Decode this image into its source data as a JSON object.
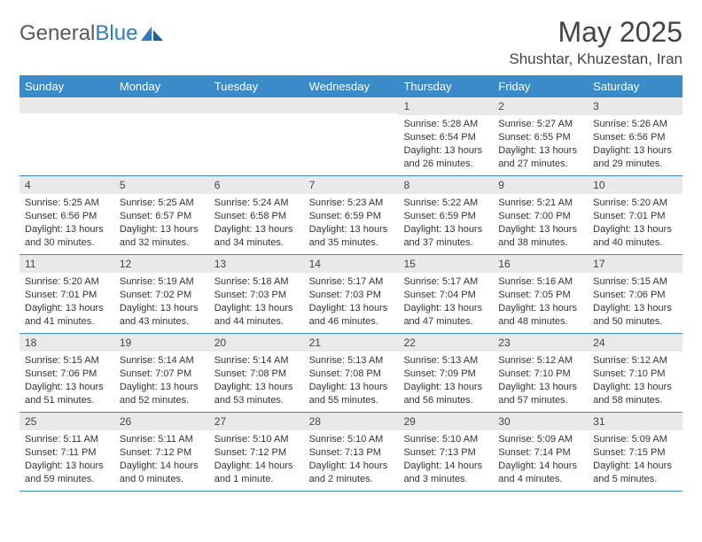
{
  "brand": {
    "part1": "General",
    "part2": "Blue"
  },
  "title": "May 2025",
  "location": "Shushtar, Khuzestan, Iran",
  "colors": {
    "header_bg": "#3b8bc9",
    "header_text": "#ffffff",
    "daynum_bg": "#e9e9e9",
    "rule": "#3b8bc9",
    "text": "#333333",
    "brand_gray": "#5a5a5a",
    "brand_blue": "#2d7bc0",
    "page_bg": "#ffffff"
  },
  "typography": {
    "title_fontsize": 32,
    "location_fontsize": 17,
    "dayheader_fontsize": 13,
    "daynum_fontsize": 12,
    "body_fontsize": 11
  },
  "day_names": [
    "Sunday",
    "Monday",
    "Tuesday",
    "Wednesday",
    "Thursday",
    "Friday",
    "Saturday"
  ],
  "weeks": [
    [
      {
        "n": "",
        "sr": "",
        "ss": "",
        "dl": ""
      },
      {
        "n": "",
        "sr": "",
        "ss": "",
        "dl": ""
      },
      {
        "n": "",
        "sr": "",
        "ss": "",
        "dl": ""
      },
      {
        "n": "",
        "sr": "",
        "ss": "",
        "dl": ""
      },
      {
        "n": "1",
        "sr": "Sunrise: 5:28 AM",
        "ss": "Sunset: 6:54 PM",
        "dl": "Daylight: 13 hours and 26 minutes."
      },
      {
        "n": "2",
        "sr": "Sunrise: 5:27 AM",
        "ss": "Sunset: 6:55 PM",
        "dl": "Daylight: 13 hours and 27 minutes."
      },
      {
        "n": "3",
        "sr": "Sunrise: 5:26 AM",
        "ss": "Sunset: 6:56 PM",
        "dl": "Daylight: 13 hours and 29 minutes."
      }
    ],
    [
      {
        "n": "4",
        "sr": "Sunrise: 5:25 AM",
        "ss": "Sunset: 6:56 PM",
        "dl": "Daylight: 13 hours and 30 minutes."
      },
      {
        "n": "5",
        "sr": "Sunrise: 5:25 AM",
        "ss": "Sunset: 6:57 PM",
        "dl": "Daylight: 13 hours and 32 minutes."
      },
      {
        "n": "6",
        "sr": "Sunrise: 5:24 AM",
        "ss": "Sunset: 6:58 PM",
        "dl": "Daylight: 13 hours and 34 minutes."
      },
      {
        "n": "7",
        "sr": "Sunrise: 5:23 AM",
        "ss": "Sunset: 6:59 PM",
        "dl": "Daylight: 13 hours and 35 minutes."
      },
      {
        "n": "8",
        "sr": "Sunrise: 5:22 AM",
        "ss": "Sunset: 6:59 PM",
        "dl": "Daylight: 13 hours and 37 minutes."
      },
      {
        "n": "9",
        "sr": "Sunrise: 5:21 AM",
        "ss": "Sunset: 7:00 PM",
        "dl": "Daylight: 13 hours and 38 minutes."
      },
      {
        "n": "10",
        "sr": "Sunrise: 5:20 AM",
        "ss": "Sunset: 7:01 PM",
        "dl": "Daylight: 13 hours and 40 minutes."
      }
    ],
    [
      {
        "n": "11",
        "sr": "Sunrise: 5:20 AM",
        "ss": "Sunset: 7:01 PM",
        "dl": "Daylight: 13 hours and 41 minutes."
      },
      {
        "n": "12",
        "sr": "Sunrise: 5:19 AM",
        "ss": "Sunset: 7:02 PM",
        "dl": "Daylight: 13 hours and 43 minutes."
      },
      {
        "n": "13",
        "sr": "Sunrise: 5:18 AM",
        "ss": "Sunset: 7:03 PM",
        "dl": "Daylight: 13 hours and 44 minutes."
      },
      {
        "n": "14",
        "sr": "Sunrise: 5:17 AM",
        "ss": "Sunset: 7:03 PM",
        "dl": "Daylight: 13 hours and 46 minutes."
      },
      {
        "n": "15",
        "sr": "Sunrise: 5:17 AM",
        "ss": "Sunset: 7:04 PM",
        "dl": "Daylight: 13 hours and 47 minutes."
      },
      {
        "n": "16",
        "sr": "Sunrise: 5:16 AM",
        "ss": "Sunset: 7:05 PM",
        "dl": "Daylight: 13 hours and 48 minutes."
      },
      {
        "n": "17",
        "sr": "Sunrise: 5:15 AM",
        "ss": "Sunset: 7:06 PM",
        "dl": "Daylight: 13 hours and 50 minutes."
      }
    ],
    [
      {
        "n": "18",
        "sr": "Sunrise: 5:15 AM",
        "ss": "Sunset: 7:06 PM",
        "dl": "Daylight: 13 hours and 51 minutes."
      },
      {
        "n": "19",
        "sr": "Sunrise: 5:14 AM",
        "ss": "Sunset: 7:07 PM",
        "dl": "Daylight: 13 hours and 52 minutes."
      },
      {
        "n": "20",
        "sr": "Sunrise: 5:14 AM",
        "ss": "Sunset: 7:08 PM",
        "dl": "Daylight: 13 hours and 53 minutes."
      },
      {
        "n": "21",
        "sr": "Sunrise: 5:13 AM",
        "ss": "Sunset: 7:08 PM",
        "dl": "Daylight: 13 hours and 55 minutes."
      },
      {
        "n": "22",
        "sr": "Sunrise: 5:13 AM",
        "ss": "Sunset: 7:09 PM",
        "dl": "Daylight: 13 hours and 56 minutes."
      },
      {
        "n": "23",
        "sr": "Sunrise: 5:12 AM",
        "ss": "Sunset: 7:10 PM",
        "dl": "Daylight: 13 hours and 57 minutes."
      },
      {
        "n": "24",
        "sr": "Sunrise: 5:12 AM",
        "ss": "Sunset: 7:10 PM",
        "dl": "Daylight: 13 hours and 58 minutes."
      }
    ],
    [
      {
        "n": "25",
        "sr": "Sunrise: 5:11 AM",
        "ss": "Sunset: 7:11 PM",
        "dl": "Daylight: 13 hours and 59 minutes."
      },
      {
        "n": "26",
        "sr": "Sunrise: 5:11 AM",
        "ss": "Sunset: 7:12 PM",
        "dl": "Daylight: 14 hours and 0 minutes."
      },
      {
        "n": "27",
        "sr": "Sunrise: 5:10 AM",
        "ss": "Sunset: 7:12 PM",
        "dl": "Daylight: 14 hours and 1 minute."
      },
      {
        "n": "28",
        "sr": "Sunrise: 5:10 AM",
        "ss": "Sunset: 7:13 PM",
        "dl": "Daylight: 14 hours and 2 minutes."
      },
      {
        "n": "29",
        "sr": "Sunrise: 5:10 AM",
        "ss": "Sunset: 7:13 PM",
        "dl": "Daylight: 14 hours and 3 minutes."
      },
      {
        "n": "30",
        "sr": "Sunrise: 5:09 AM",
        "ss": "Sunset: 7:14 PM",
        "dl": "Daylight: 14 hours and 4 minutes."
      },
      {
        "n": "31",
        "sr": "Sunrise: 5:09 AM",
        "ss": "Sunset: 7:15 PM",
        "dl": "Daylight: 14 hours and 5 minutes."
      }
    ]
  ]
}
